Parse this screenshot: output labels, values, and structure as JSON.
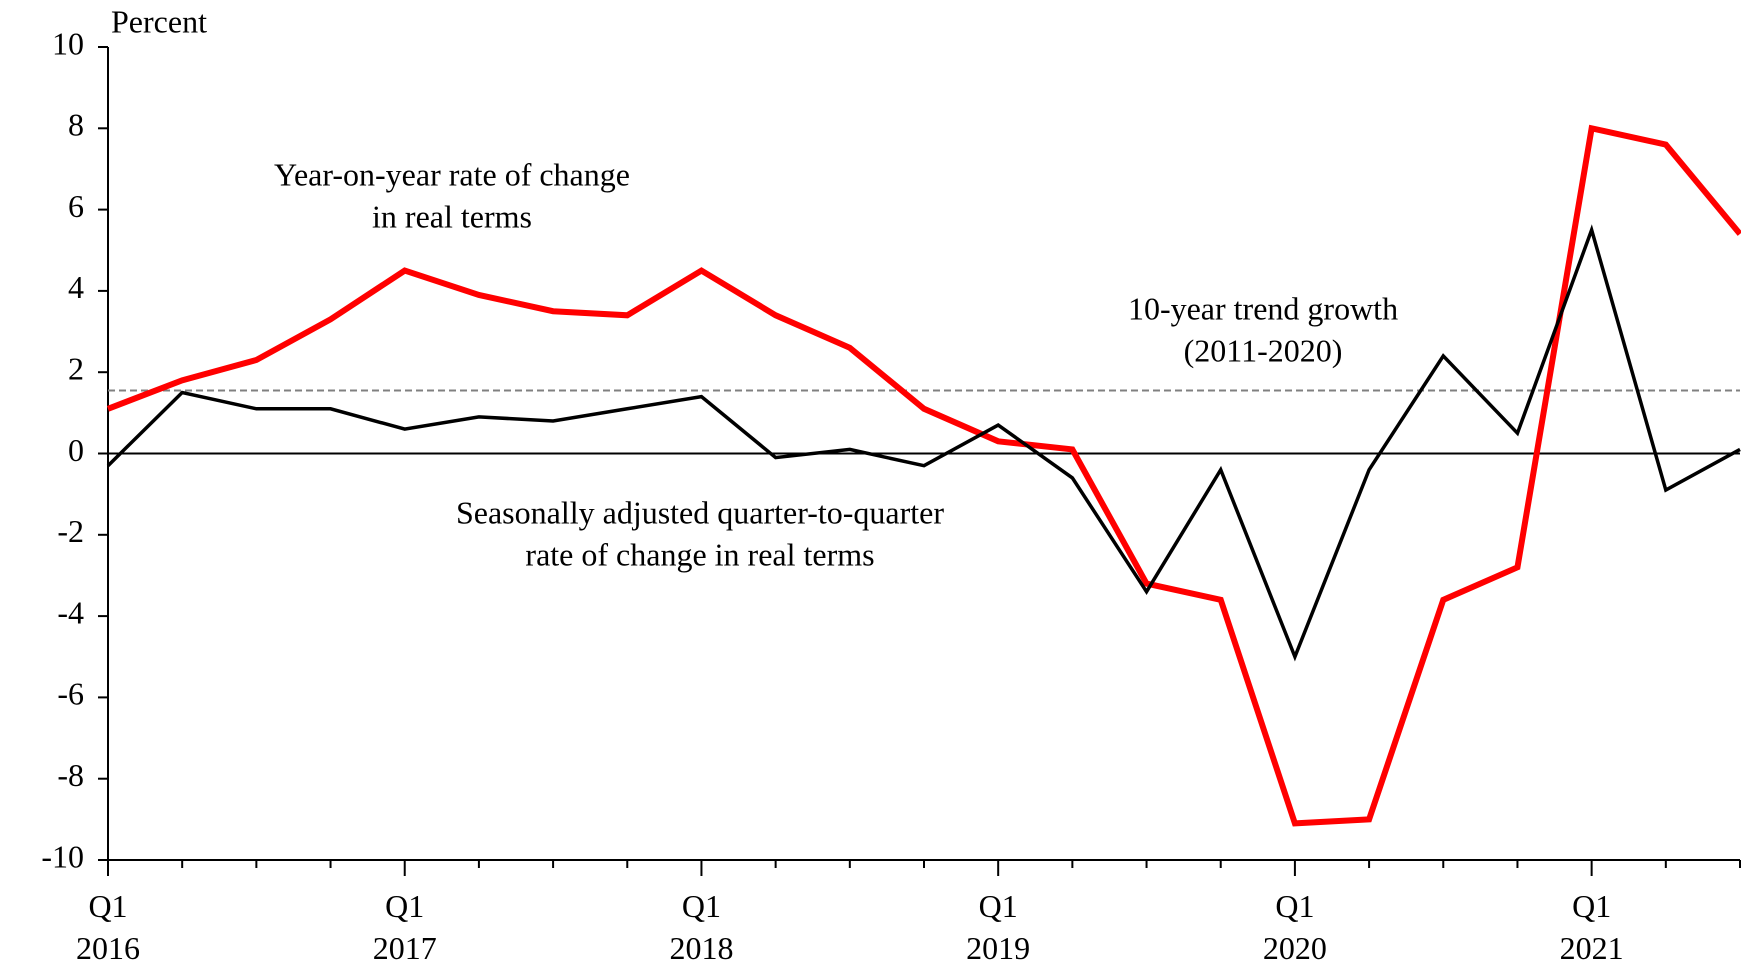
{
  "chart_data": {
    "type": "line",
    "y_label": "Percent",
    "categories": [
      "Q1 2016",
      null,
      null,
      null,
      "Q1 2017",
      null,
      null,
      null,
      "Q1 2018",
      null,
      null,
      null,
      "Q1 2019",
      null,
      null,
      null,
      "Q1 2020",
      null,
      null,
      null,
      "Q1 2021",
      null,
      null
    ],
    "series": [
      {
        "color": "#ff0000",
        "width": 6,
        "values": [
          1.1,
          1.8,
          2.3,
          3.3,
          4.5,
          3.9,
          3.5,
          3.4,
          4.5,
          3.4,
          2.6,
          1.1,
          0.3,
          0.1,
          -3.2,
          -3.6,
          -9.1,
          -9.0,
          -3.6,
          -2.8,
          8.0,
          7.6,
          5.4
        ]
      },
      {
        "color": "#000000",
        "width": 3.5,
        "values": [
          -0.3,
          1.5,
          1.1,
          1.1,
          0.6,
          0.9,
          0.8,
          1.1,
          1.4,
          -0.1,
          0.1,
          -0.3,
          0.7,
          -0.6,
          -3.4,
          -0.4,
          -5.0,
          -0.4,
          2.4,
          0.5,
          5.5,
          -0.9,
          0.1
        ]
      }
    ],
    "trend_line": 1.55,
    "ylim": [
      -10,
      10
    ],
    "yticks": [
      -10,
      -8,
      -6,
      -4,
      -2,
      0,
      2,
      4,
      6,
      8,
      10
    ],
    "annotations": [
      [
        "Year-on-year rate of change",
        "in real terms"
      ],
      [
        "10-year trend growth",
        "(2011-2020)"
      ],
      [
        "Seasonally adjusted quarter-to-quarter",
        "rate of change in real terms"
      ]
    ]
  }
}
